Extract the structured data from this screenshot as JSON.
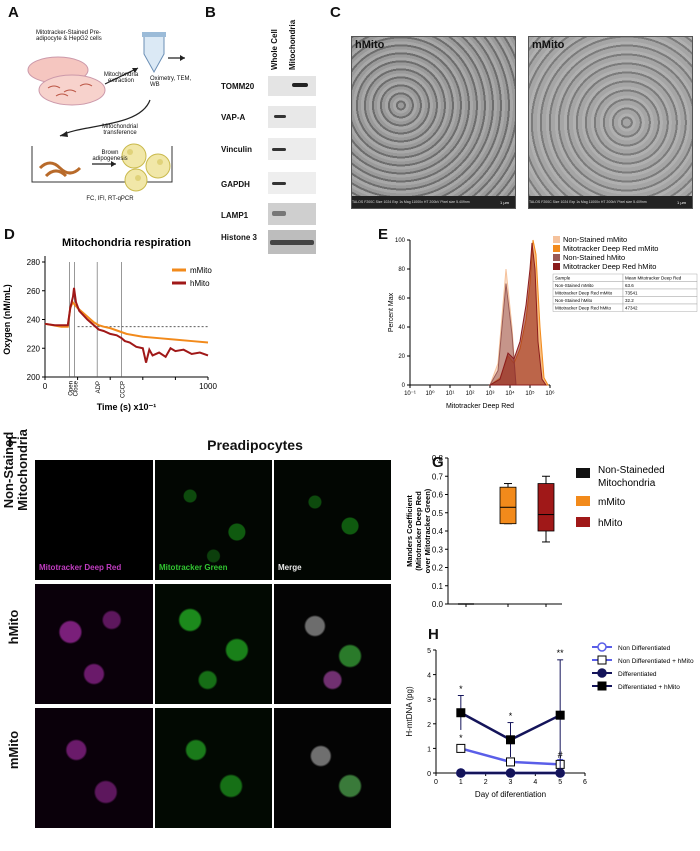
{
  "panels": {
    "A": "A",
    "B": "B",
    "C": "C",
    "D": "D",
    "E": "E",
    "F": "F",
    "G": "G",
    "H": "H"
  },
  "panelA": {
    "cells_label": "Mitotracker-Stained Pre-adipocyte & HepG2 cells",
    "extraction_label": "Mitochondria extraction",
    "assays_label": "Oximetry, TEM, WB",
    "transference_label": "Mitochondrial transference",
    "adipogenesis_label": "Brown adipogenesis",
    "readouts_label": "FC, IFI, RT-qPCR"
  },
  "panelB": {
    "col_headers": [
      "Whole Cell",
      "Mitochondria"
    ],
    "proteins": [
      "TOMM20",
      "VAP-A",
      "Vinculin",
      "GAPDH",
      "LAMP1",
      "Histone 3"
    ]
  },
  "panelC": {
    "images": [
      {
        "title": "hMito",
        "footer": "TALOS F200C  Size 1024  Exp 1s  Mag 11000x  HT 200kV  Pixel size 5.409nm",
        "scale": "1 µm"
      },
      {
        "title": "mMito",
        "footer": "TALOS F200C  Size 1024  Exp 1s  Mag 11000x  HT 200kV  Pixel size 5.409nm",
        "scale": "1 µm"
      }
    ]
  },
  "panelF": {
    "title": "Preadipocytes",
    "rows": [
      "Non-Stained Mitochondria",
      "hMito",
      "mMito"
    ],
    "channels": [
      "Mitotracker Deep Red",
      "Mitotracker Green",
      "Merge"
    ],
    "channel_colors": [
      "#c03cc0",
      "#31c431",
      "#e8e8e8"
    ]
  },
  "chart_data": [
    {
      "id": "D",
      "type": "line",
      "title": "Mitochondria respiration",
      "xlabel": "Time (s) x10⁻¹",
      "ylabel": "Oxygen (nM/mL)",
      "xlim": [
        0,
        1000
      ],
      "ylim": [
        200,
        280
      ],
      "xticks": [
        0,
        200,
        400,
        600,
        800,
        1000
      ],
      "yticks": [
        200,
        220,
        240,
        260,
        280
      ],
      "dotted_line_y": 235,
      "events": [
        {
          "label": "Open",
          "x": 150
        },
        {
          "label": "Close",
          "x": 180
        },
        {
          "label": "ADP",
          "x": 320
        },
        {
          "label": "CCCP",
          "x": 470
        }
      ],
      "series": [
        {
          "name": "mMito",
          "color": "#f28a1b",
          "x": [
            0,
            50,
            100,
            140,
            155,
            170,
            200,
            260,
            300,
            330,
            360,
            400,
            450,
            500,
            600,
            700,
            800,
            900,
            1000
          ],
          "y": [
            237,
            236,
            235,
            235,
            248,
            252,
            248,
            242,
            238,
            236,
            235,
            234,
            232,
            230,
            228,
            227,
            226,
            225,
            224
          ]
        },
        {
          "name": "hMito",
          "color": "#a01818",
          "x": [
            0,
            60,
            100,
            140,
            155,
            172,
            178,
            190,
            210,
            260,
            300,
            330,
            360,
            400,
            440,
            470,
            490,
            520,
            560,
            600,
            620,
            640,
            660,
            700,
            740,
            770,
            800,
            850,
            900,
            950,
            1000
          ],
          "y": [
            237,
            236,
            236,
            236,
            248,
            256,
            262,
            252,
            246,
            240,
            236,
            233,
            232,
            230,
            229,
            227,
            225,
            224,
            221,
            220,
            210,
            219,
            215,
            217,
            214,
            220,
            218,
            219,
            216,
            217,
            215
          ]
        }
      ]
    },
    {
      "id": "E",
      "type": "area",
      "ylabel": "Percent Max",
      "xlabel": "Mitotracker Deep Red",
      "ylim": [
        0,
        100
      ],
      "xtick_labels": [
        "10⁻¹",
        "10⁰",
        "10¹",
        "10²",
        "10³",
        "10⁴",
        "10⁵",
        "10⁶"
      ],
      "yticks": [
        0,
        20,
        40,
        60,
        80,
        100
      ],
      "series": [
        {
          "name": "Non-Stained mMito",
          "color": "#f5c29c",
          "x": [
            3.0,
            3.4,
            3.8,
            4.1,
            4.3,
            4.5,
            4.7,
            4.9,
            5.1,
            5.3,
            5.5,
            5.8
          ],
          "y": [
            0,
            15,
            80,
            40,
            0,
            0,
            0,
            0,
            0,
            0,
            0,
            0
          ]
        },
        {
          "name": "Mitotracker Deep Red mMito",
          "color": "#f28a1b",
          "x": [
            3.0,
            3.5,
            3.9,
            4.2,
            4.5,
            4.8,
            5.0,
            5.15,
            5.3,
            5.5,
            5.7,
            5.9
          ],
          "y": [
            0,
            5,
            20,
            15,
            25,
            45,
            70,
            100,
            90,
            40,
            5,
            0
          ]
        },
        {
          "name": "Non-Stained hMito",
          "color": "#9a5a55",
          "x": [
            3.0,
            3.4,
            3.8,
            4.1,
            4.3,
            4.5,
            4.7,
            4.9,
            5.1,
            5.3,
            5.5,
            5.8
          ],
          "y": [
            0,
            10,
            70,
            35,
            0,
            0,
            0,
            0,
            0,
            0,
            0,
            0
          ]
        },
        {
          "name": "Mitotracker Deep Red hMito",
          "color": "#8b1c1c",
          "x": [
            3.0,
            3.5,
            3.9,
            4.2,
            4.5,
            4.8,
            5.0,
            5.1,
            5.25,
            5.4,
            5.6,
            5.8
          ],
          "y": [
            0,
            4,
            22,
            18,
            30,
            55,
            80,
            98,
            80,
            30,
            4,
            0
          ]
        }
      ],
      "table": {
        "headers": [
          "Sample",
          "Mean Mitotracker Deep Red"
        ],
        "rows": [
          [
            "Non-Stained mMito",
            "63.6"
          ],
          [
            "Mitotracker Deep Red mMito",
            "73541"
          ],
          [
            "Non-Stained hMito",
            "32.2"
          ],
          [
            "Mitotracker Deep Red hMito",
            "47342"
          ]
        ]
      }
    },
    {
      "id": "G",
      "type": "box",
      "ylabel": "Manders Coefficient (Mitotracker Deep Red over Mitotracker Green)",
      "ylim": [
        0,
        0.8
      ],
      "yticks": [
        "0.0",
        "0.1",
        "0.2",
        "0.3",
        "0.4",
        "0.5",
        "0.6",
        "0.7",
        "0.8"
      ],
      "series": [
        {
          "name": "Non-Staineded Mitochondria",
          "color": "#111111",
          "min": 0,
          "q1": 0,
          "median": 0,
          "q3": 0,
          "max": 0
        },
        {
          "name": "mMito",
          "color": "#f28a1b",
          "min": 0.44,
          "q1": 0.44,
          "median": 0.53,
          "q3": 0.64,
          "max": 0.66
        },
        {
          "name": "hMito",
          "color": "#a01818",
          "min": 0.34,
          "q1": 0.4,
          "median": 0.49,
          "q3": 0.66,
          "max": 0.7
        }
      ]
    },
    {
      "id": "H",
      "type": "line",
      "xlabel": "Day of diferentiation",
      "ylabel": "H-mtDNA (pg)",
      "xlim": [
        0,
        6
      ],
      "ylim": [
        0,
        5
      ],
      "xticks": [
        0,
        1,
        2,
        3,
        4,
        5,
        6
      ],
      "yticks": [
        0,
        1,
        2,
        3,
        4,
        5
      ],
      "series": [
        {
          "name": "Non Differentiated",
          "color": "#5a5ee8",
          "marker": "open-circle",
          "x": [
            1,
            3,
            5
          ],
          "y": [
            0,
            0,
            0
          ],
          "err": [
            0,
            0,
            0
          ]
        },
        {
          "name": "Non Differentiated + hMito",
          "color": "#5a5ee8",
          "marker": "open-square",
          "x": [
            1,
            3,
            5
          ],
          "y": [
            1.0,
            0.45,
            0.35
          ],
          "err": [
            0.15,
            0.15,
            0.2
          ]
        },
        {
          "name": "Differentiated",
          "color": "#14145a",
          "marker": "filled-circle",
          "x": [
            1,
            3,
            5
          ],
          "y": [
            0,
            0,
            0
          ],
          "err": [
            0,
            0,
            0
          ]
        },
        {
          "name": "Differentiated + hMito",
          "color": "#14145a",
          "marker": "filled-square",
          "x": [
            1,
            3,
            5
          ],
          "y": [
            2.45,
            1.35,
            2.35
          ],
          "err": [
            0.7,
            0.7,
            2.25
          ]
        }
      ],
      "annotations": [
        {
          "text": "*",
          "x": 1,
          "y": 3.3
        },
        {
          "text": "*",
          "x": 1,
          "y": 1.3
        },
        {
          "text": "*",
          "x": 3,
          "y": 2.2
        },
        {
          "text": "**",
          "x": 5,
          "y": 4.75
        },
        {
          "text": "#",
          "x": 5,
          "y": 0.6
        }
      ]
    }
  ]
}
